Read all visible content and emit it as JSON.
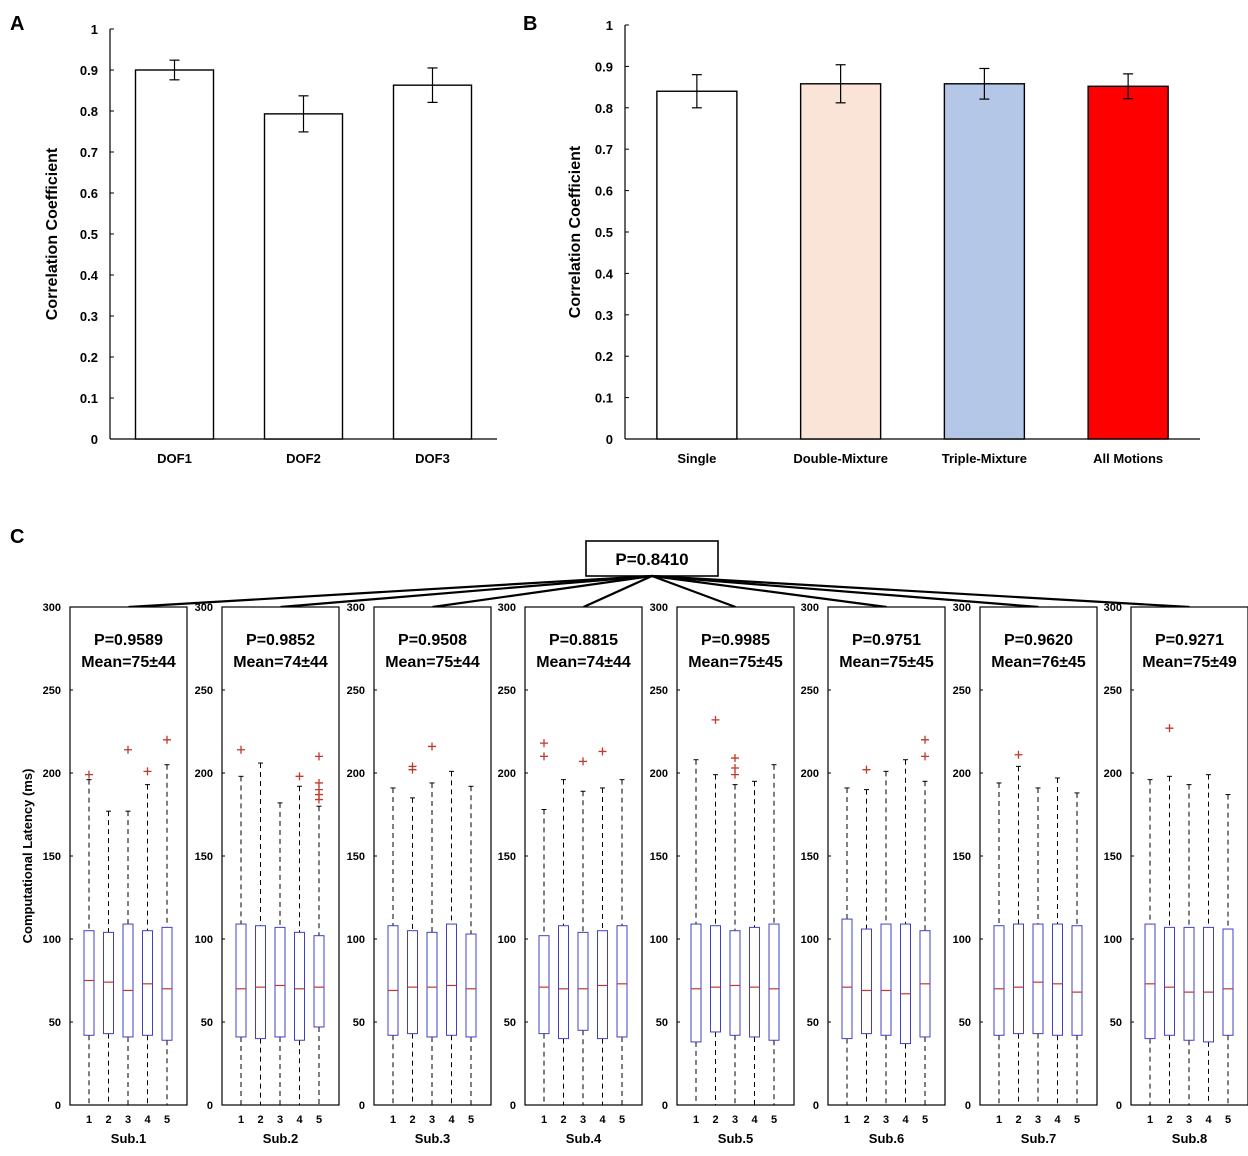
{
  "chart_data": [
    {
      "panel": "A",
      "type": "bar",
      "categories": [
        "DOF1",
        "DOF2",
        "DOF3"
      ],
      "values": [
        0.9,
        0.793,
        0.863
      ],
      "errors": [
        0.024,
        0.044,
        0.042
      ],
      "colors": [
        "#ffffff",
        "#ffffff",
        "#ffffff"
      ],
      "ylabel": "Correlation Coefficient",
      "ylim": [
        0,
        1
      ],
      "yticks": [
        "0",
        "0.1",
        "0.2",
        "0.3",
        "0.4",
        "0.5",
        "0.6",
        "0.7",
        "0.8",
        "0.9",
        "1"
      ]
    },
    {
      "panel": "B",
      "type": "bar",
      "categories": [
        "Single",
        "Double-Mixture",
        "Triple-Mixture",
        "All Motions"
      ],
      "values": [
        0.84,
        0.858,
        0.858,
        0.852
      ],
      "errors": [
        0.04,
        0.046,
        0.037,
        0.03
      ],
      "colors": [
        "#ffffff",
        "#f9e4d7",
        "#b4c7e7",
        "#ff0000"
      ],
      "ylabel": "Correlation Coefficient",
      "ylim": [
        0,
        1
      ],
      "yticks": [
        "0",
        "0.1",
        "0.2",
        "0.3",
        "0.4",
        "0.5",
        "0.6",
        "0.7",
        "0.8",
        "0.9",
        "1"
      ]
    },
    {
      "panel": "C",
      "type": "box",
      "ylabel": "Computational Latency (ms)",
      "ylim": [
        0,
        300
      ],
      "yticks": [
        "0",
        "50",
        "100",
        "150",
        "200",
        "250",
        "300"
      ],
      "xticks": [
        "1",
        "2",
        "3",
        "4",
        "5"
      ],
      "overall_p": "P=0.8410",
      "subjects": [
        {
          "label": "Sub.1",
          "p": "P=0.9589",
          "mean": "Mean=75±44",
          "boxes": [
            {
              "q1": 42,
              "med": 75,
              "q3": 105,
              "wlo": 0,
              "whi": 196,
              "out": [
                199
              ]
            },
            {
              "q1": 43,
              "med": 74,
              "q3": 104,
              "wlo": 0,
              "whi": 177,
              "out": []
            },
            {
              "q1": 41,
              "med": 69,
              "q3": 109,
              "wlo": 0,
              "whi": 177,
              "out": [
                214
              ]
            },
            {
              "q1": 42,
              "med": 73,
              "q3": 105,
              "wlo": 0,
              "whi": 193,
              "out": [
                201
              ]
            },
            {
              "q1": 39,
              "med": 70,
              "q3": 107,
              "wlo": 0,
              "whi": 205,
              "out": [
                220
              ]
            }
          ]
        },
        {
          "label": "Sub.2",
          "p": "P=0.9852",
          "mean": "Mean=74±44",
          "boxes": [
            {
              "q1": 41,
              "med": 70,
              "q3": 109,
              "wlo": 0,
              "whi": 198,
              "out": [
                214
              ]
            },
            {
              "q1": 40,
              "med": 71,
              "q3": 108,
              "wlo": 0,
              "whi": 206,
              "out": []
            },
            {
              "q1": 41,
              "med": 72,
              "q3": 107,
              "wlo": 0,
              "whi": 182,
              "out": []
            },
            {
              "q1": 39,
              "med": 70,
              "q3": 104,
              "wlo": 0,
              "whi": 192,
              "out": [
                198
              ]
            },
            {
              "q1": 47,
              "med": 71,
              "q3": 102,
              "wlo": 0,
              "whi": 180,
              "out": [
                184,
                187,
                190,
                194,
                210
              ]
            }
          ]
        },
        {
          "label": "Sub.3",
          "p": "P=0.9508",
          "mean": "Mean=75±44",
          "boxes": [
            {
              "q1": 42,
              "med": 69,
              "q3": 108,
              "wlo": 0,
              "whi": 191,
              "out": []
            },
            {
              "q1": 43,
              "med": 71,
              "q3": 105,
              "wlo": 0,
              "whi": 185,
              "out": [
                202,
                204
              ]
            },
            {
              "q1": 41,
              "med": 71,
              "q3": 104,
              "wlo": 0,
              "whi": 194,
              "out": [
                216
              ]
            },
            {
              "q1": 42,
              "med": 72,
              "q3": 109,
              "wlo": 0,
              "whi": 201,
              "out": []
            },
            {
              "q1": 41,
              "med": 70,
              "q3": 103,
              "wlo": 0,
              "whi": 192,
              "out": []
            }
          ]
        },
        {
          "label": "Sub.4",
          "p": "P=0.8815",
          "mean": "Mean=74±44",
          "boxes": [
            {
              "q1": 43,
              "med": 71,
              "q3": 102,
              "wlo": 0,
              "whi": 178,
              "out": [
                210,
                218
              ]
            },
            {
              "q1": 40,
              "med": 70,
              "q3": 108,
              "wlo": 0,
              "whi": 196,
              "out": []
            },
            {
              "q1": 45,
              "med": 70,
              "q3": 104,
              "wlo": 0,
              "whi": 189,
              "out": [
                207
              ]
            },
            {
              "q1": 40,
              "med": 72,
              "q3": 105,
              "wlo": 0,
              "whi": 191,
              "out": [
                213
              ]
            },
            {
              "q1": 41,
              "med": 73,
              "q3": 108,
              "wlo": 0,
              "whi": 196,
              "out": []
            }
          ]
        },
        {
          "label": "Sub.5",
          "p": "P=0.9985",
          "mean": "Mean=75±45",
          "boxes": [
            {
              "q1": 38,
              "med": 70,
              "q3": 109,
              "wlo": 0,
              "whi": 208,
              "out": []
            },
            {
              "q1": 44,
              "med": 71,
              "q3": 108,
              "wlo": 0,
              "whi": 199,
              "out": [
                232
              ]
            },
            {
              "q1": 42,
              "med": 72,
              "q3": 105,
              "wlo": 0,
              "whi": 193,
              "out": [
                199,
                203,
                209
              ]
            },
            {
              "q1": 41,
              "med": 71,
              "q3": 107,
              "wlo": 0,
              "whi": 195,
              "out": []
            },
            {
              "q1": 39,
              "med": 70,
              "q3": 109,
              "wlo": 0,
              "whi": 205,
              "out": []
            }
          ]
        },
        {
          "label": "Sub.6",
          "p": "P=0.9751",
          "mean": "Mean=75±45",
          "boxes": [
            {
              "q1": 40,
              "med": 71,
              "q3": 112,
              "wlo": 0,
              "whi": 191,
              "out": []
            },
            {
              "q1": 43,
              "med": 69,
              "q3": 106,
              "wlo": 0,
              "whi": 190,
              "out": [
                202
              ]
            },
            {
              "q1": 42,
              "med": 69,
              "q3": 109,
              "wlo": 0,
              "whi": 201,
              "out": []
            },
            {
              "q1": 37,
              "med": 67,
              "q3": 109,
              "wlo": 0,
              "whi": 208,
              "out": []
            },
            {
              "q1": 41,
              "med": 73,
              "q3": 105,
              "wlo": 0,
              "whi": 195,
              "out": [
                210,
                220
              ]
            }
          ]
        },
        {
          "label": "Sub.7",
          "p": "P=0.9620",
          "mean": "Mean=76±45",
          "boxes": [
            {
              "q1": 42,
              "med": 70,
              "q3": 108,
              "wlo": 0,
              "whi": 194,
              "out": []
            },
            {
              "q1": 43,
              "med": 71,
              "q3": 109,
              "wlo": 0,
              "whi": 204,
              "out": [
                211
              ]
            },
            {
              "q1": 43,
              "med": 74,
              "q3": 109,
              "wlo": 0,
              "whi": 191,
              "out": []
            },
            {
              "q1": 42,
              "med": 73,
              "q3": 109,
              "wlo": 0,
              "whi": 197,
              "out": []
            },
            {
              "q1": 42,
              "med": 68,
              "q3": 108,
              "wlo": 0,
              "whi": 188,
              "out": []
            }
          ]
        },
        {
          "label": "Sub.8",
          "p": "P=0.9271",
          "mean": "Mean=75±49",
          "boxes": [
            {
              "q1": 40,
              "med": 73,
              "q3": 109,
              "wlo": 0,
              "whi": 196,
              "out": []
            },
            {
              "q1": 42,
              "med": 71,
              "q3": 107,
              "wlo": 0,
              "whi": 198,
              "out": [
                227
              ]
            },
            {
              "q1": 39,
              "med": 68,
              "q3": 107,
              "wlo": 0,
              "whi": 193,
              "out": []
            },
            {
              "q1": 38,
              "med": 68,
              "q3": 107,
              "wlo": 0,
              "whi": 199,
              "out": []
            },
            {
              "q1": 42,
              "med": 70,
              "q3": 106,
              "wlo": 0,
              "whi": 187,
              "out": []
            }
          ]
        }
      ]
    }
  ]
}
